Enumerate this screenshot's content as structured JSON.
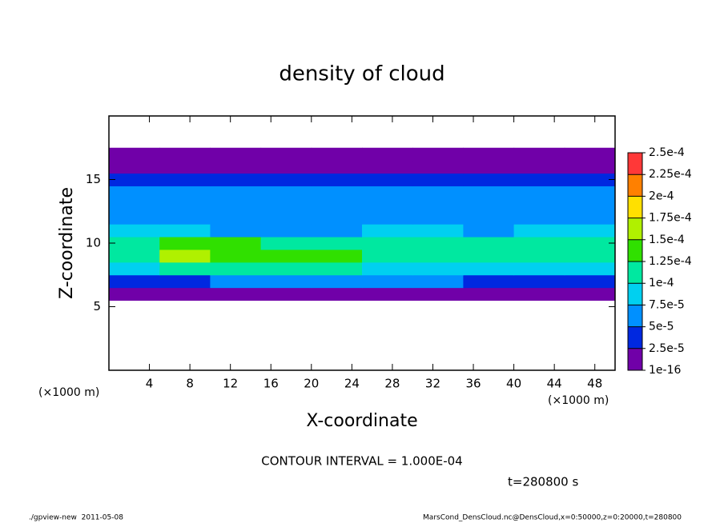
{
  "chart_data": {
    "type": "heatmap",
    "title": "density of cloud",
    "xlabel": "X-coordinate",
    "ylabel": "Z-coordinate",
    "x_unit": "(×1000 m)",
    "y_unit": "(×1000 m)",
    "annotation": "CONTOUR INTERVAL = 1.000E-04",
    "time_label": "t=280800 s",
    "footer_left": "./gpview-new  2011-05-08",
    "footer_right": "MarsCond_DensCloud.nc@DensCloud,x=0:50000,z=0:20000,t=280800",
    "xlim": [
      0,
      50
    ],
    "ylim": [
      0,
      20
    ],
    "xticks": [
      4,
      8,
      12,
      16,
      20,
      24,
      28,
      32,
      36,
      40,
      44,
      48
    ],
    "yticks": [
      5,
      10,
      15
    ],
    "x": [
      2.5,
      7.5,
      12.5,
      17.5,
      22.5,
      27.5,
      32.5,
      37.5,
      42.5,
      47.5
    ],
    "z": [
      6,
      7,
      8,
      9,
      10,
      11,
      12,
      13,
      14,
      15,
      16,
      17
    ],
    "values": [
      [
        1e-05,
        1e-05,
        1e-05,
        1e-05,
        1e-05,
        1e-05,
        1e-05,
        1e-05,
        1e-05,
        1e-05
      ],
      [
        4e-05,
        4e-05,
        5e-05,
        5e-05,
        5e-05,
        5e-05,
        5e-05,
        4e-05,
        4e-05,
        4e-05
      ],
      [
        9e-05,
        0.00011,
        0.00011,
        0.0001,
        0.0001,
        9e-05,
        9e-05,
        9e-05,
        9e-05,
        8e-05
      ],
      [
        0.00012,
        0.00015,
        0.00014,
        0.00013,
        0.00014,
        0.00012,
        0.00011,
        0.00012,
        0.00012,
        0.00011
      ],
      [
        0.00011,
        0.00013,
        0.00013,
        0.00012,
        0.00012,
        0.00011,
        0.0001,
        0.00011,
        0.00011,
        0.00011
      ],
      [
        9e-05,
        8e-05,
        7e-05,
        7e-05,
        6e-05,
        8e-05,
        8e-05,
        7e-05,
        8e-05,
        9e-05
      ],
      [
        7e-05,
        6e-05,
        6e-05,
        6e-05,
        5e-05,
        6e-05,
        6e-05,
        6e-05,
        6e-05,
        7e-05
      ],
      [
        6e-05,
        6e-05,
        6e-05,
        5e-05,
        5e-05,
        6e-05,
        6e-05,
        5e-05,
        6e-05,
        6e-05
      ],
      [
        6e-05,
        6e-05,
        6e-05,
        6e-05,
        6e-05,
        6e-05,
        6e-05,
        6e-05,
        6e-05,
        6e-05
      ],
      [
        4e-05,
        4e-05,
        4e-05,
        4e-05,
        4e-05,
        4e-05,
        4e-05,
        4e-05,
        4e-05,
        4e-05
      ],
      [
        2e-05,
        2e-05,
        2e-05,
        2e-05,
        2e-05,
        2e-05,
        2e-05,
        2e-05,
        2e-05,
        2e-05
      ],
      [
        5e-06,
        5e-06,
        5e-06,
        5e-06,
        5e-06,
        5e-06,
        5e-06,
        5e-06,
        5e-06,
        5e-06
      ]
    ],
    "colorbar": {
      "ticks": [
        {
          "value": 1e-16,
          "label": "1e-16"
        },
        {
          "value": 2.5e-05,
          "label": "2.5e-5"
        },
        {
          "value": 5e-05,
          "label": "5e-5"
        },
        {
          "value": 7.5e-05,
          "label": "7.5e-5"
        },
        {
          "value": 0.0001,
          "label": "1e-4"
        },
        {
          "value": 0.000125,
          "label": "1.25e-4"
        },
        {
          "value": 0.00015,
          "label": "1.5e-4"
        },
        {
          "value": 0.000175,
          "label": "1.75e-4"
        },
        {
          "value": 0.0002,
          "label": "2e-4"
        },
        {
          "value": 0.000225,
          "label": "2.25e-4"
        },
        {
          "value": 0.00025,
          "label": "2.5e-4"
        }
      ],
      "colors": [
        "#7000a8",
        "#0028e0",
        "#0090ff",
        "#00d0f0",
        "#00e8a0",
        "#30e000",
        "#b0f000",
        "#ffe000",
        "#ff8000",
        "#ff3838"
      ]
    }
  }
}
